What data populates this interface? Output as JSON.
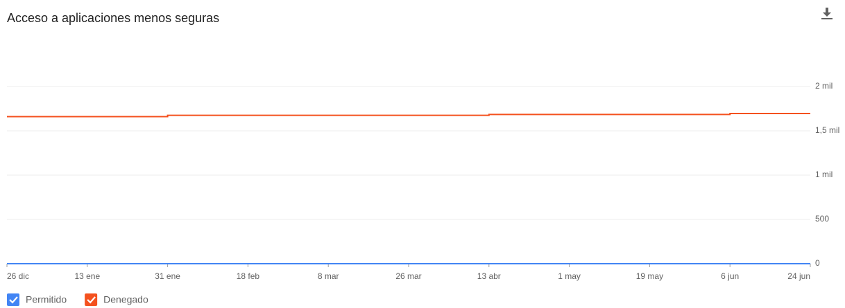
{
  "chart_data": {
    "type": "line",
    "step": true,
    "title": "Acceso a aplicaciones menos seguras",
    "categories": [
      "26 dic",
      "13 ene",
      "31 ene",
      "18 feb",
      "8 mar",
      "26 mar",
      "13 abr",
      "1 may",
      "19 may",
      "6 jun",
      "24 jun"
    ],
    "series": [
      {
        "name": "Permitido",
        "color": "#4285f4",
        "values": [
          0,
          0,
          0,
          0,
          0,
          0,
          0,
          0,
          0,
          0,
          0
        ]
      },
      {
        "name": "Denegado",
        "color": "#f4511e",
        "values": [
          1660,
          1660,
          1675,
          1675,
          1675,
          1675,
          1685,
          1685,
          1685,
          1695,
          1695
        ]
      }
    ],
    "ylim": [
      0,
      2200
    ],
    "yticks": [
      0,
      500,
      {
        "value": 1000,
        "label": "1 mil"
      },
      {
        "value": 1500,
        "label": "1,5 mil"
      },
      {
        "value": 2000,
        "label": "2 mil"
      }
    ],
    "grid": true,
    "legend": "bottom"
  }
}
